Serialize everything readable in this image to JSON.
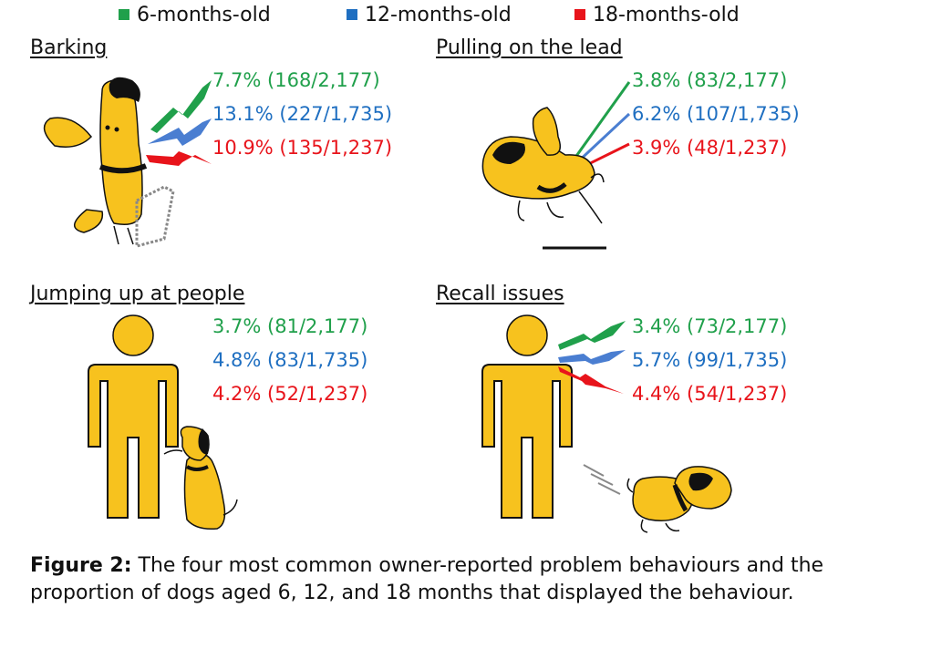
{
  "legend": [
    {
      "label": "6-months-old",
      "color": "#20a04b"
    },
    {
      "label": "12-months-old",
      "color": "#1f6fc1"
    },
    {
      "label": "18-months-old",
      "color": "#e8141b"
    }
  ],
  "panels": [
    {
      "title": "Barking",
      "stats": [
        "7.7% (168/2,177)",
        "13.1% (227/1,735)",
        "10.9% (135/1,237)"
      ],
      "icon": "barking-dog-icon"
    },
    {
      "title": "Pulling on the lead",
      "stats": [
        "3.8% (83/2,177)",
        "6.2% (107/1,735)",
        "3.9% (48/1,237)"
      ],
      "icon": "pulling-dog-icon"
    },
    {
      "title": "Jumping up at people",
      "stats": [
        "3.7% (81/2,177)",
        "4.8% (83/1,735)",
        "4.2% (52/1,237)"
      ],
      "icon": "jumping-dog-icon"
    },
    {
      "title": "Recall issues",
      "stats": [
        "3.4% (73/2,177)",
        "5.7% (99/1,735)",
        "4.4% (54/1,237)"
      ],
      "icon": "running-dog-icon"
    }
  ],
  "colors": {
    "dog": "#f7c21e",
    "person": "#f7c21e",
    "outline": "#111111"
  },
  "caption": {
    "label": "Figure 2:",
    "text": " The four most common owner-reported problem behaviours and the proportion of dogs aged 6, 12, and 18 months that displayed the behaviour."
  }
}
